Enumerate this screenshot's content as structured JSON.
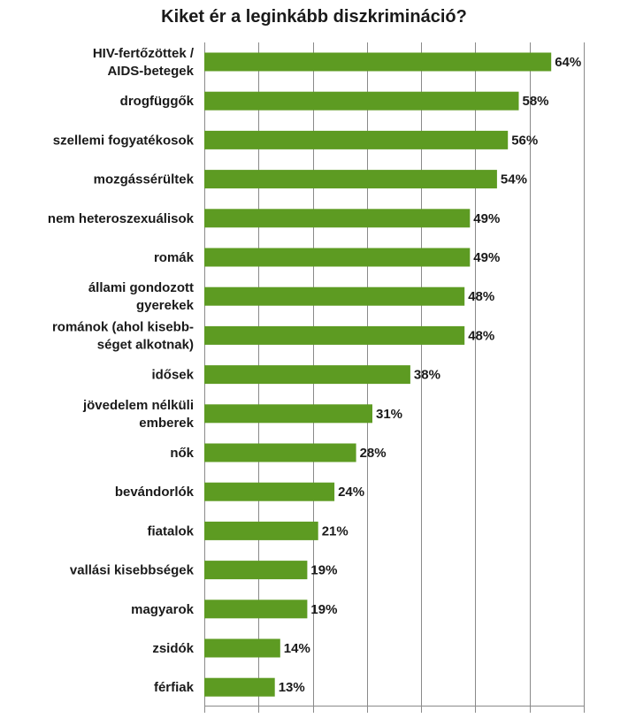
{
  "chart_data": {
    "type": "bar",
    "orientation": "horizontal",
    "title": "Kiket ér a leginkább diszkrimináció?",
    "categories": [
      [
        "HIV-fertőzöttek /",
        "AIDS-betegek"
      ],
      [
        "drogfüggők"
      ],
      [
        "szellemi fogyatékosok"
      ],
      [
        "mozgássérültek"
      ],
      [
        "nem heteroszexuálisok"
      ],
      [
        "romák"
      ],
      [
        "állami gondozott",
        "gyerekek"
      ],
      [
        "románok (ahol kisebb-",
        "séget alkotnak)"
      ],
      [
        "idősek"
      ],
      [
        "jövedelem nélküli",
        "emberek"
      ],
      [
        "nők"
      ],
      [
        "bevándorlók"
      ],
      [
        "fiatalok"
      ],
      [
        "vallási kisebbségek"
      ],
      [
        "magyarok"
      ],
      [
        "zsidók"
      ],
      [
        "férfiak"
      ]
    ],
    "values": [
      64,
      58,
      56,
      54,
      49,
      49,
      48,
      48,
      38,
      31,
      28,
      24,
      21,
      19,
      19,
      14,
      13
    ],
    "value_labels": [
      "64%",
      "58%",
      "56%",
      "54%",
      "49%",
      "49%",
      "48%",
      "48%",
      "38%",
      "31%",
      "28%",
      "24%",
      "21%",
      "19%",
      "19%",
      "14%",
      "13%"
    ],
    "xlim": [
      0,
      70
    ],
    "grid": true,
    "bar_color": "#5d9b22",
    "legend": "none"
  }
}
